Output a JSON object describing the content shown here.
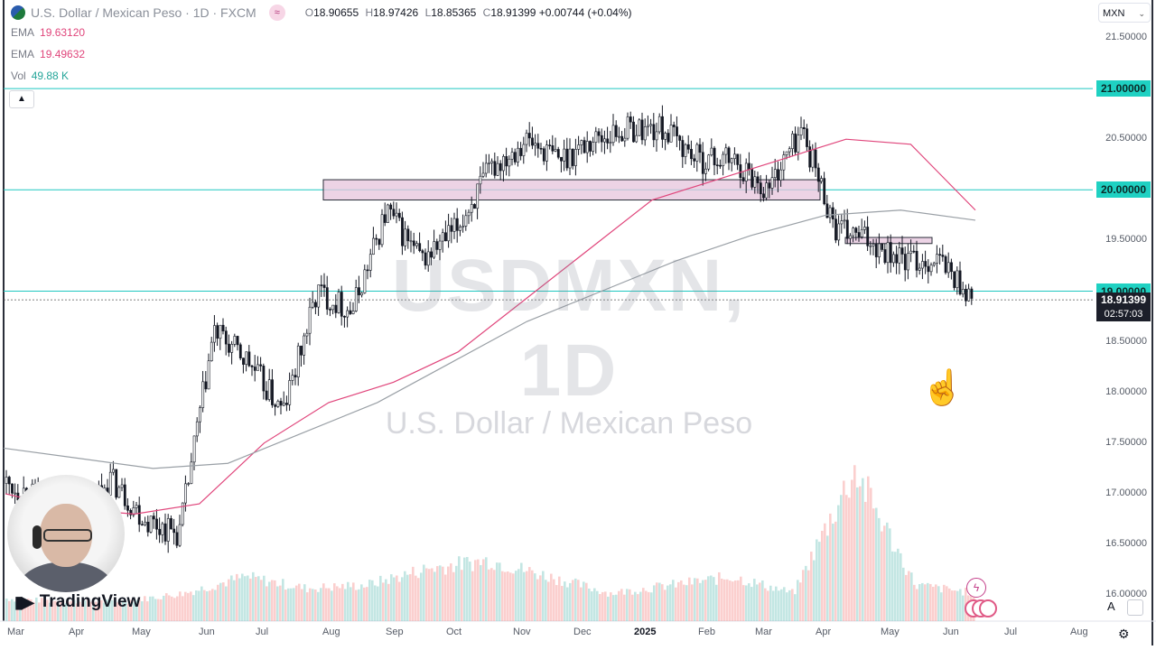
{
  "header": {
    "symbol_title": "U.S. Dollar / Mexican Peso · 1D · FXCM",
    "ohlc": {
      "o_label": "O",
      "o": "18.90655",
      "h_label": "H",
      "h": "18.97426",
      "l_label": "L",
      "l": "18.85365",
      "c_label": "C",
      "c": "18.91399",
      "change": "+0.00744 (+0.04%)"
    },
    "indicators": [
      {
        "name": "EMA",
        "value": "19.63120",
        "color": "#e0457b"
      },
      {
        "name": "EMA",
        "value": "19.49632",
        "color": "#e0457b"
      },
      {
        "name": "Vol",
        "value": "49.88 K",
        "color": "#26a69a"
      }
    ],
    "currency": "MXN"
  },
  "price_axis": {
    "labels": [
      "21.50000",
      "21.00000",
      "20.50000",
      "20.00000",
      "19.50000",
      "19.00000",
      "18.50000",
      "18.00000",
      "17.50000",
      "17.00000",
      "16.50000",
      "16.00000"
    ],
    "highlighted": [
      "21.00000",
      "20.00000",
      "19.00000"
    ],
    "last_price": "18.91399",
    "countdown": "02:57:03"
  },
  "time_axis": {
    "labels": [
      "Mar",
      "Apr",
      "May",
      "Jun",
      "Jul",
      "Aug",
      "Sep",
      "Oct",
      "Nov",
      "Dec",
      "2025",
      "Feb",
      "Mar",
      "Apr",
      "May",
      "Jun",
      "Jul",
      "Aug"
    ],
    "strong": [
      "2025"
    ]
  },
  "watermark": {
    "symbol": "USDMXN, 1D",
    "name": "U.S. Dollar / Mexican Peso"
  },
  "branding": {
    "name": "TradingView"
  },
  "controls": {
    "auto_label": "A"
  },
  "colors": {
    "horizontal_line": "#1fc7c0",
    "ema_fast": "#e0457b",
    "sma_slow": "#9aa0a6",
    "zone_fill": "#e6c4dc",
    "up": "#26a69a",
    "down": "#ef5350"
  },
  "chart_data": {
    "type": "candlestick",
    "timeframe": "1D",
    "ylim": [
      16.3,
      21.6
    ],
    "horizontal_levels": [
      21.0,
      20.0,
      19.0
    ],
    "zones": [
      {
        "from_month": "Aug",
        "to_month": "Mar",
        "low": 19.9,
        "high": 20.1
      },
      {
        "from_month": "Apr",
        "to_month": "May",
        "low": 19.47,
        "high": 19.53
      }
    ],
    "close_path": [
      {
        "m": "Mar",
        "v": 17.1
      },
      {
        "m": "Apr",
        "v": 16.95
      },
      {
        "m": "Apr",
        "v": 16.8
      },
      {
        "m": "May",
        "v": 17.15
      },
      {
        "m": "May",
        "v": 16.75
      },
      {
        "m": "Jun",
        "v": 16.6
      },
      {
        "m": "Jun",
        "v": 18.6
      },
      {
        "m": "Jul",
        "v": 18.3
      },
      {
        "m": "Jul",
        "v": 17.8
      },
      {
        "m": "Aug",
        "v": 19.0
      },
      {
        "m": "Aug",
        "v": 18.8
      },
      {
        "m": "Sep",
        "v": 19.8
      },
      {
        "m": "Oct",
        "v": 19.3
      },
      {
        "m": "Oct",
        "v": 19.6
      },
      {
        "m": "Nov",
        "v": 20.2
      },
      {
        "m": "Nov",
        "v": 20.5
      },
      {
        "m": "Dec",
        "v": 20.3
      },
      {
        "m": "Dec",
        "v": 20.5
      },
      {
        "m": "2025",
        "v": 20.6
      },
      {
        "m": "Feb",
        "v": 20.6
      },
      {
        "m": "Feb",
        "v": 20.3
      },
      {
        "m": "Mar",
        "v": 20.3
      },
      {
        "m": "Mar",
        "v": 20.0
      },
      {
        "m": "Apr",
        "v": 20.6
      },
      {
        "m": "Apr",
        "v": 19.6
      },
      {
        "m": "May",
        "v": 19.5
      },
      {
        "m": "May",
        "v": 19.3
      },
      {
        "m": "Jun",
        "v": 19.3
      },
      {
        "m": "Jun",
        "v": 18.91
      }
    ],
    "ema_fast": [
      17.0,
      16.85,
      16.8,
      16.9,
      17.5,
      17.9,
      18.1,
      18.4,
      18.9,
      19.4,
      19.9,
      20.1,
      20.3,
      20.5,
      20.45,
      19.8
    ],
    "sma_slow": [
      17.45,
      17.35,
      17.25,
      17.3,
      17.6,
      17.9,
      18.3,
      18.7,
      19.0,
      19.3,
      19.55,
      19.75,
      19.8,
      19.7
    ],
    "volume_scale": [
      0.12,
      0.1,
      0.1,
      0.15,
      0.25,
      0.18,
      0.2,
      0.3,
      0.35,
      0.25,
      0.15,
      0.2,
      0.25,
      0.15,
      0.9,
      0.2,
      0.15
    ]
  }
}
